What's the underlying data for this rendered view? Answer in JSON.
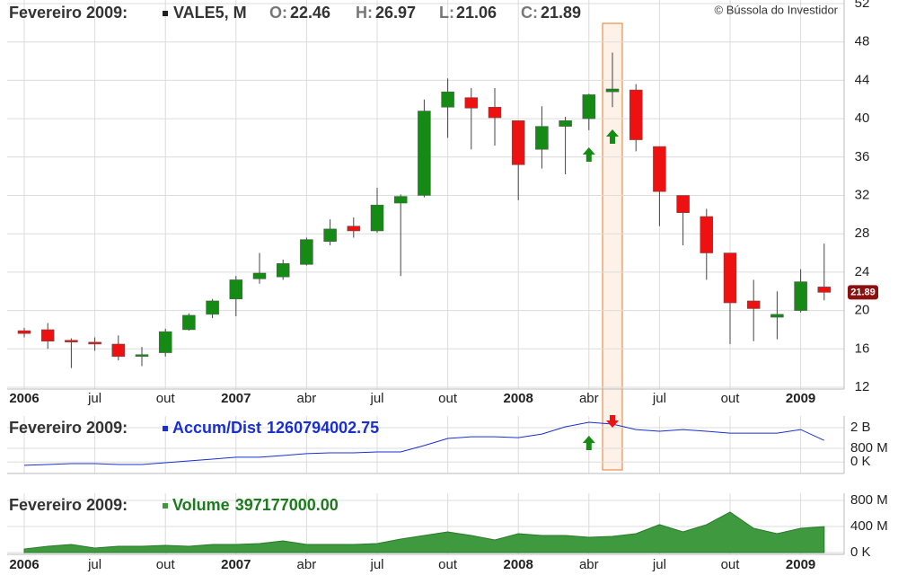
{
  "chart_data": [
    {
      "type": "candlestick",
      "date_label": "Fevereiro 2009:",
      "symbol": "VALE5, M",
      "copyright": "© Bússola do Investidor",
      "ohlc_labels": [
        "O:",
        "H:",
        "L:",
        "C:"
      ],
      "categories": [
        "2006",
        null,
        null,
        "jul",
        null,
        null,
        "out",
        null,
        null,
        "2007",
        null,
        null,
        "abr",
        null,
        null,
        "jul",
        null,
        null,
        "out",
        null,
        null,
        "2008",
        null,
        null,
        "abr",
        null,
        null,
        "jul",
        null,
        null,
        "out",
        null,
        null,
        "2009",
        null
      ],
      "open": [
        17.9,
        18.0,
        16.9,
        16.7,
        16.5,
        15.3,
        15.6,
        18.0,
        19.6,
        21.2,
        23.3,
        23.5,
        24.8,
        27.2,
        28.8,
        28.3,
        31.2,
        32.0,
        41.2,
        42.2,
        41.2,
        39.8,
        36.8,
        39.2,
        40.0,
        42.8,
        43.0,
        37.1,
        32.0,
        29.8,
        26.0,
        21.0,
        19.3,
        20.0,
        22.46
      ],
      "high": [
        18.2,
        18.7,
        17.1,
        17.2,
        17.4,
        16.2,
        18.1,
        19.7,
        21.2,
        23.6,
        26.0,
        25.3,
        27.6,
        29.5,
        29.7,
        32.8,
        32.1,
        42.0,
        44.2,
        43.2,
        43.2,
        39.8,
        41.3,
        40.2,
        42.6,
        46.9,
        43.6,
        37.1,
        32.0,
        30.6,
        26.0,
        23.2,
        22.0,
        24.3,
        26.97
      ],
      "low": [
        17.2,
        16.0,
        14.0,
        15.8,
        14.8,
        14.2,
        15.2,
        17.9,
        19.2,
        19.4,
        22.8,
        23.2,
        24.7,
        26.8,
        27.6,
        28.1,
        23.6,
        31.8,
        38.0,
        36.8,
        37.2,
        31.5,
        34.8,
        34.2,
        38.8,
        41.2,
        36.6,
        28.8,
        26.8,
        23.2,
        16.5,
        16.8,
        17.0,
        19.8,
        21.06
      ],
      "close": [
        17.6,
        16.8,
        16.7,
        16.5,
        15.2,
        15.4,
        17.8,
        19.5,
        21.0,
        23.2,
        23.9,
        24.9,
        27.4,
        28.5,
        28.3,
        31.0,
        31.9,
        40.8,
        42.8,
        41.1,
        40.1,
        35.2,
        39.2,
        39.8,
        42.5,
        43.1,
        37.8,
        32.4,
        30.2,
        26.0,
        20.8,
        20.2,
        19.6,
        23.0,
        21.89
      ],
      "up_color": "#158a15",
      "down_color": "#ee1111",
      "ylim": [
        12,
        52
      ],
      "yticks": [
        12,
        16,
        20,
        24,
        28,
        32,
        36,
        40,
        44,
        48,
        52
      ],
      "grid": true
    },
    {
      "type": "line",
      "date_label": "Fevereiro 2009:",
      "name": "Accum/Dist",
      "color": "#1a2fd0",
      "last_value": 1260794002.75,
      "values": [
        -190000000,
        -140000000,
        -90000000,
        -90000000,
        -140000000,
        -140000000,
        -40000000,
        70000000,
        170000000,
        280000000,
        280000000,
        380000000,
        490000000,
        540000000,
        540000000,
        590000000,
        590000000,
        960000000,
        1370000000,
        1470000000,
        1470000000,
        1420000000,
        1630000000,
        2050000000,
        2310000000,
        2210000000,
        1890000000,
        1790000000,
        1890000000,
        1790000000,
        1680000000,
        1680000000,
        1680000000,
        1890000000,
        1260794002.75
      ],
      "ylim": [
        -560000000,
        2470000000
      ],
      "yticks": [
        {
          "value": 2000000000,
          "label": "2 B"
        },
        {
          "value": 800000000,
          "label": "800 M"
        },
        {
          "value": 0,
          "label": "0 K"
        }
      ],
      "grid": true
    },
    {
      "type": "area",
      "date_label": "Fevereiro 2009:",
      "name": "Volume",
      "color": "#3f9a3f",
      "values": [
        55000000,
        97000000,
        124000000,
        69000000,
        97000000,
        97000000,
        110000000,
        97000000,
        124000000,
        124000000,
        138000000,
        179000000,
        124000000,
        124000000,
        124000000,
        138000000,
        207000000,
        262000000,
        317000000,
        262000000,
        193000000,
        290000000,
        262000000,
        262000000,
        234000000,
        248000000,
        290000000,
        428000000,
        317000000,
        428000000,
        621000000,
        372000000,
        290000000,
        372000000,
        397177000
      ],
      "value_labels": [
        null,
        null,
        null,
        null,
        null,
        null,
        null,
        null,
        null,
        null,
        null,
        null,
        null,
        null,
        null,
        null,
        null,
        null,
        null,
        null,
        null,
        null,
        null,
        null,
        null,
        null,
        null,
        null,
        null,
        null,
        null,
        null,
        null,
        null,
        "397177000.00"
      ],
      "ylim": [
        0,
        855000000
      ],
      "yticks": [
        {
          "value": 800000000,
          "label": "800 M"
        },
        {
          "value": 400000000,
          "label": "400 M"
        },
        {
          "value": 0,
          "label": "0 K"
        }
      ],
      "grid": true
    }
  ]
}
